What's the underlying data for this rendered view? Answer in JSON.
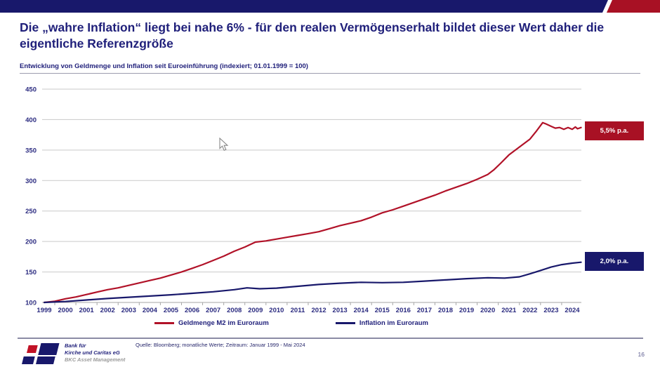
{
  "slide": {
    "title": "Die „wahre Inflation“ liegt bei nahe 6% - für den realen Vermögenserhalt bildet dieser Wert daher die eigentliche Referenzgröße",
    "page_number": "16"
  },
  "colors": {
    "brand_navy": "#18186B",
    "brand_red": "#A81124",
    "title_navy": "#1F1F7A",
    "gridline": "#C9C9C9",
    "axis_line": "#A6A6A6",
    "axis_label": "#2B2B80"
  },
  "chart_data": {
    "type": "line",
    "title": "Entwicklung von Geldmenge und Inflation seit Euroeinführung (indexiert; 01.01.1999 = 100)",
    "xlabel": "",
    "ylabel": "",
    "ylim": [
      100,
      450
    ],
    "y_ticks": [
      100,
      150,
      200,
      250,
      300,
      350,
      400,
      450
    ],
    "x_ticks": [
      1999,
      2000,
      2001,
      2002,
      2003,
      2004,
      2005,
      2006,
      2007,
      2008,
      2009,
      2010,
      2011,
      2012,
      2013,
      2014,
      2015,
      2016,
      2017,
      2018,
      2019,
      2020,
      2021,
      2022,
      2023,
      2024
    ],
    "grid": "horizontal",
    "legend_position": "bottom",
    "series": [
      {
        "name": "Geldmenge M2 im Euroraum",
        "color": "#B11228",
        "annotation": "5,5% p.a.",
        "points": [
          [
            1999,
            100
          ],
          [
            1999.5,
            102
          ],
          [
            2000,
            106
          ],
          [
            2000.5,
            109
          ],
          [
            2001,
            113
          ],
          [
            2001.5,
            117
          ],
          [
            2002,
            121
          ],
          [
            2002.5,
            124
          ],
          [
            2003,
            128
          ],
          [
            2003.5,
            132
          ],
          [
            2004,
            136
          ],
          [
            2004.5,
            140
          ],
          [
            2005,
            145
          ],
          [
            2005.5,
            150
          ],
          [
            2006,
            156
          ],
          [
            2006.5,
            162
          ],
          [
            2007,
            169
          ],
          [
            2007.5,
            176
          ],
          [
            2008,
            184
          ],
          [
            2008.5,
            191
          ],
          [
            2009,
            199
          ],
          [
            2009.5,
            201
          ],
          [
            2010,
            204
          ],
          [
            2010.5,
            207
          ],
          [
            2011,
            210
          ],
          [
            2011.5,
            213
          ],
          [
            2012,
            216
          ],
          [
            2012.5,
            221
          ],
          [
            2013,
            226
          ],
          [
            2013.5,
            230
          ],
          [
            2014,
            234
          ],
          [
            2014.5,
            240
          ],
          [
            2015,
            247
          ],
          [
            2015.5,
            252
          ],
          [
            2016,
            258
          ],
          [
            2016.5,
            264
          ],
          [
            2017,
            270
          ],
          [
            2017.5,
            276
          ],
          [
            2018,
            283
          ],
          [
            2018.5,
            289
          ],
          [
            2019,
            295
          ],
          [
            2019.5,
            302
          ],
          [
            2020,
            310
          ],
          [
            2020.3,
            318
          ],
          [
            2020.6,
            328
          ],
          [
            2021,
            342
          ],
          [
            2021.5,
            355
          ],
          [
            2022,
            368
          ],
          [
            2022.3,
            381
          ],
          [
            2022.6,
            395
          ],
          [
            2022.75,
            393
          ],
          [
            2023,
            389
          ],
          [
            2023.2,
            386
          ],
          [
            2023.4,
            387
          ],
          [
            2023.6,
            384
          ],
          [
            2023.8,
            387
          ],
          [
            2024,
            384
          ],
          [
            2024.15,
            388
          ],
          [
            2024.25,
            385
          ],
          [
            2024.42,
            387
          ]
        ]
      },
      {
        "name": "Inflation im Euroraum",
        "color": "#18186B",
        "annotation": "2,0% p.a.",
        "points": [
          [
            1999,
            100
          ],
          [
            2000,
            101.5
          ],
          [
            2001,
            104
          ],
          [
            2002,
            106.5
          ],
          [
            2003,
            108.5
          ],
          [
            2004,
            110.5
          ],
          [
            2005,
            112.5
          ],
          [
            2006,
            115
          ],
          [
            2007,
            117.5
          ],
          [
            2008,
            121
          ],
          [
            2008.6,
            124
          ],
          [
            2009.2,
            122.5
          ],
          [
            2010,
            123.5
          ],
          [
            2011,
            126.5
          ],
          [
            2012,
            129.5
          ],
          [
            2013,
            131.5
          ],
          [
            2014,
            133
          ],
          [
            2015,
            132.5
          ],
          [
            2016,
            133
          ],
          [
            2017,
            135
          ],
          [
            2018,
            137
          ],
          [
            2019,
            139
          ],
          [
            2020,
            140.5
          ],
          [
            2020.8,
            140
          ],
          [
            2021,
            140.5
          ],
          [
            2021.5,
            142
          ],
          [
            2022,
            147
          ],
          [
            2022.5,
            152.5
          ],
          [
            2023,
            158
          ],
          [
            2023.5,
            162
          ],
          [
            2024,
            164.5
          ],
          [
            2024.42,
            166
          ]
        ]
      }
    ],
    "source": "Quelle: Bloomberg; monatliche Werte; Zeitraum: Januar 1999 - Mai 2024"
  },
  "footer": {
    "org_line1": "Bank für",
    "org_line2": "Kirche und Caritas eG",
    "org_line3": "BKC Asset Management"
  }
}
